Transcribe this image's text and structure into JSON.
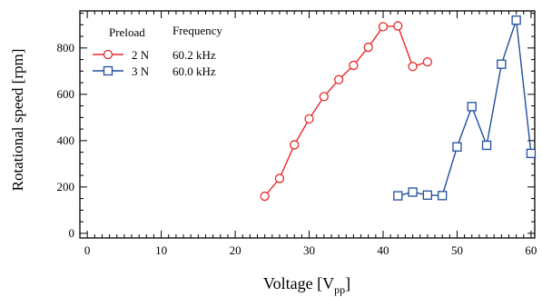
{
  "chart_data": {
    "type": "line",
    "xlabel": "Voltage [V",
    "xlabel_sub": "pp",
    "xlabel_close": "]",
    "ylabel": "Rotational speed [rpm]",
    "xlim": [
      -1,
      60.5
    ],
    "ylim": [
      -20,
      960
    ],
    "x_ticks": [
      0,
      10,
      20,
      30,
      40,
      50,
      60
    ],
    "y_ticks": [
      0,
      200,
      400,
      600,
      800
    ],
    "grid": false,
    "legend": {
      "placement": "top-left",
      "header_preload": "Preload",
      "header_frequency": "Frequency"
    },
    "series": [
      {
        "preload": "2 N",
        "frequency": "60.2 kHz",
        "color": "#e8282b",
        "marker": "circle",
        "x": [
          24,
          26,
          28,
          30,
          32,
          34,
          36,
          38,
          40,
          42,
          44,
          46
        ],
        "y": [
          160,
          237,
          382,
          494,
          590,
          663,
          725,
          803,
          892,
          895,
          720,
          740
        ]
      },
      {
        "preload": "3 N",
        "frequency": "60.0 kHz",
        "color": "#1f4e9c",
        "marker": "square",
        "x": [
          42,
          44,
          46,
          48,
          50,
          52,
          54,
          56,
          58,
          60
        ],
        "y": [
          162,
          178,
          165,
          163,
          373,
          547,
          380,
          730,
          920,
          345
        ]
      }
    ]
  }
}
